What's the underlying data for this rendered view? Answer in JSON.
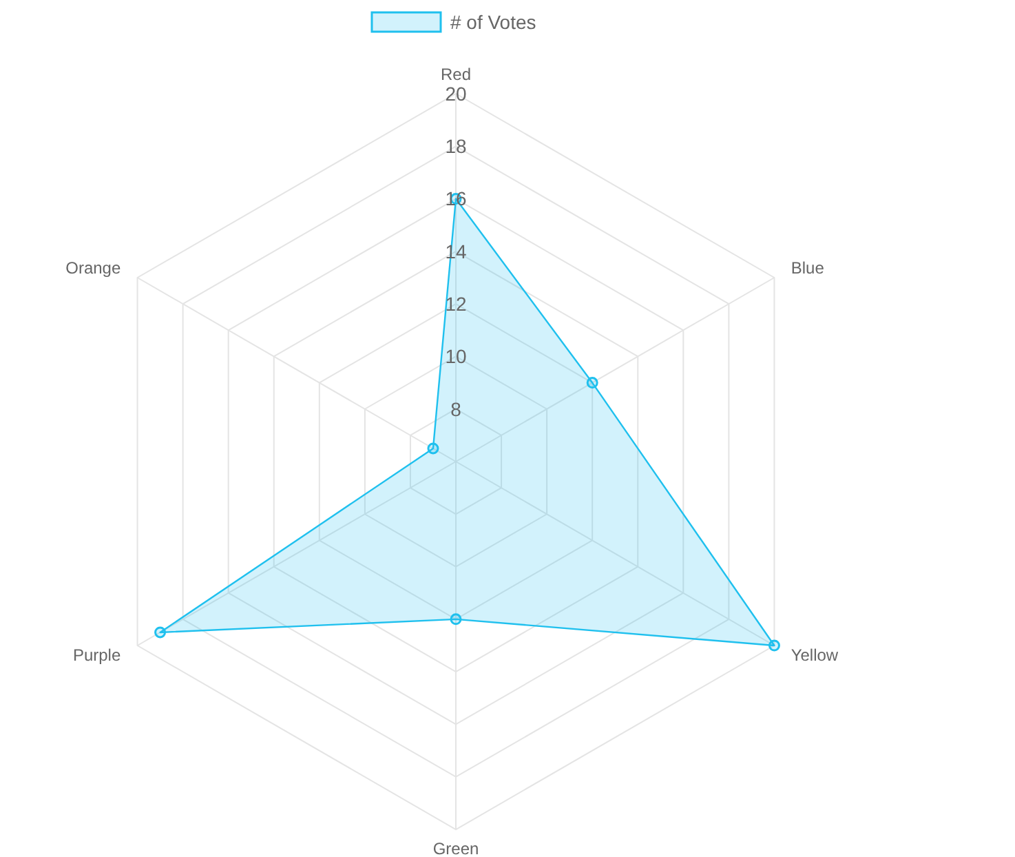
{
  "chart_data": {
    "type": "radar",
    "categories": [
      "Red",
      "Blue",
      "Yellow",
      "Green",
      "Purple",
      "Orange"
    ],
    "series": [
      {
        "name": "# of Votes",
        "color": "#1fc0ee",
        "values": [
          16,
          12,
          20,
          12,
          19,
          7
        ]
      }
    ],
    "ylim": [
      6,
      20
    ],
    "yticks": [
      8,
      10,
      12,
      14,
      16,
      18,
      20
    ],
    "grid": true,
    "legend": "top",
    "marker": "circle"
  }
}
